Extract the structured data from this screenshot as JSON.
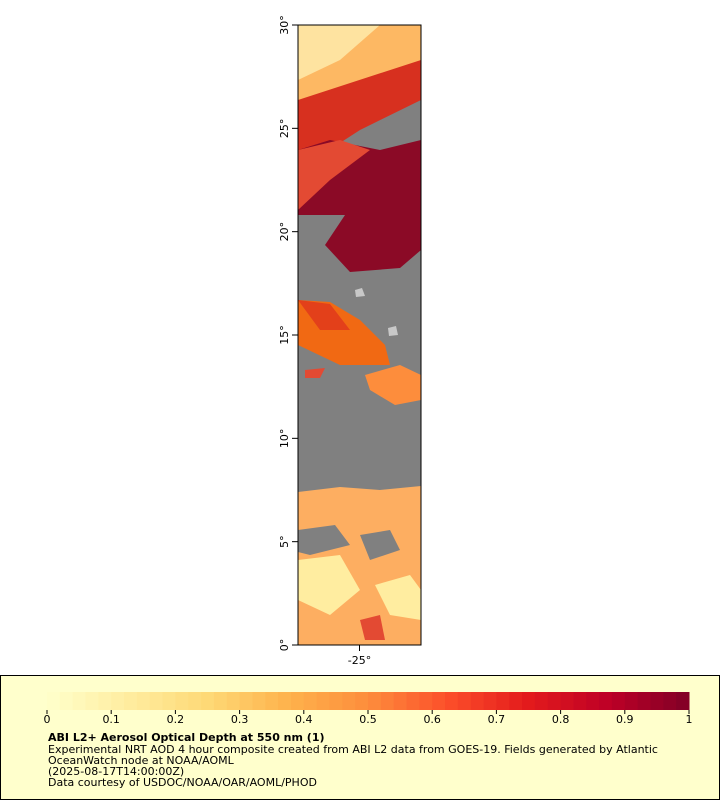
{
  "map": {
    "latlim": [
      0,
      30
    ],
    "lonlim": [
      -28,
      -22
    ],
    "lat_ticks": [
      {
        "value": 0,
        "label": "0°"
      },
      {
        "value": 5,
        "label": "5°"
      },
      {
        "value": 10,
        "label": "10°"
      },
      {
        "value": 15,
        "label": "15°"
      },
      {
        "value": 20,
        "label": "20°"
      },
      {
        "value": 25,
        "label": "25°"
      },
      {
        "value": 30,
        "label": "30°"
      }
    ],
    "lon_ticks": [
      {
        "value": -25,
        "label": "-25°"
      }
    ]
  },
  "colorbar": {
    "lim": [
      0,
      1
    ],
    "ticks": [
      0,
      0.1,
      0.2,
      0.3,
      0.4,
      0.5,
      0.6,
      0.7,
      0.8,
      0.9,
      1
    ],
    "colors": [
      "#ffffcc",
      "#ffeda0",
      "#fed976",
      "#feb24c",
      "#fd8d3c",
      "#fc4e2a",
      "#e31a1c",
      "#bd0026",
      "#800026"
    ]
  },
  "caption": {
    "title": "ABI L2+ Aerosol Optical Depth at 550 nm (1)",
    "lines": [
      "Experimental NRT AOD 4 hour composite created from ABI L2 data from GOES-19. Fields generated by Atlantic",
      "OceanWatch node at NOAA/AOML",
      "(2025-08-17T14:00:00Z)",
      "Data courtesy of USDOC/NOAA/OAR/AOML/PHOD"
    ]
  }
}
